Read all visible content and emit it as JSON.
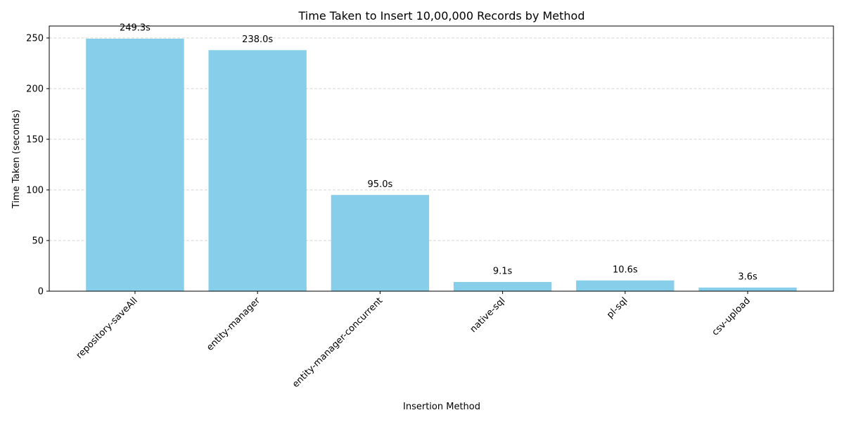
{
  "chart_data": {
    "type": "bar",
    "title": "Time Taken to Insert 10,00,000 Records by Method",
    "xlabel": "Insertion Method",
    "ylabel": "Time Taken (seconds)",
    "categories": [
      "repository-saveAll",
      "entity-manager",
      "entity-manager-concurrent",
      "native-sql",
      "pl-sql",
      "csv-upload"
    ],
    "values": [
      249.3,
      238.0,
      95.0,
      9.1,
      10.6,
      3.6
    ],
    "data_labels": [
      "249.3s",
      "238.0s",
      "95.0s",
      "9.1s",
      "10.6s",
      "3.6s"
    ],
    "ylim": [
      0,
      261.8
    ],
    "yticks": [
      0,
      50,
      100,
      150,
      200,
      250
    ],
    "grid": "y-dashed",
    "bar_color": "#87ceeb",
    "x_tick_rotation": "45"
  }
}
